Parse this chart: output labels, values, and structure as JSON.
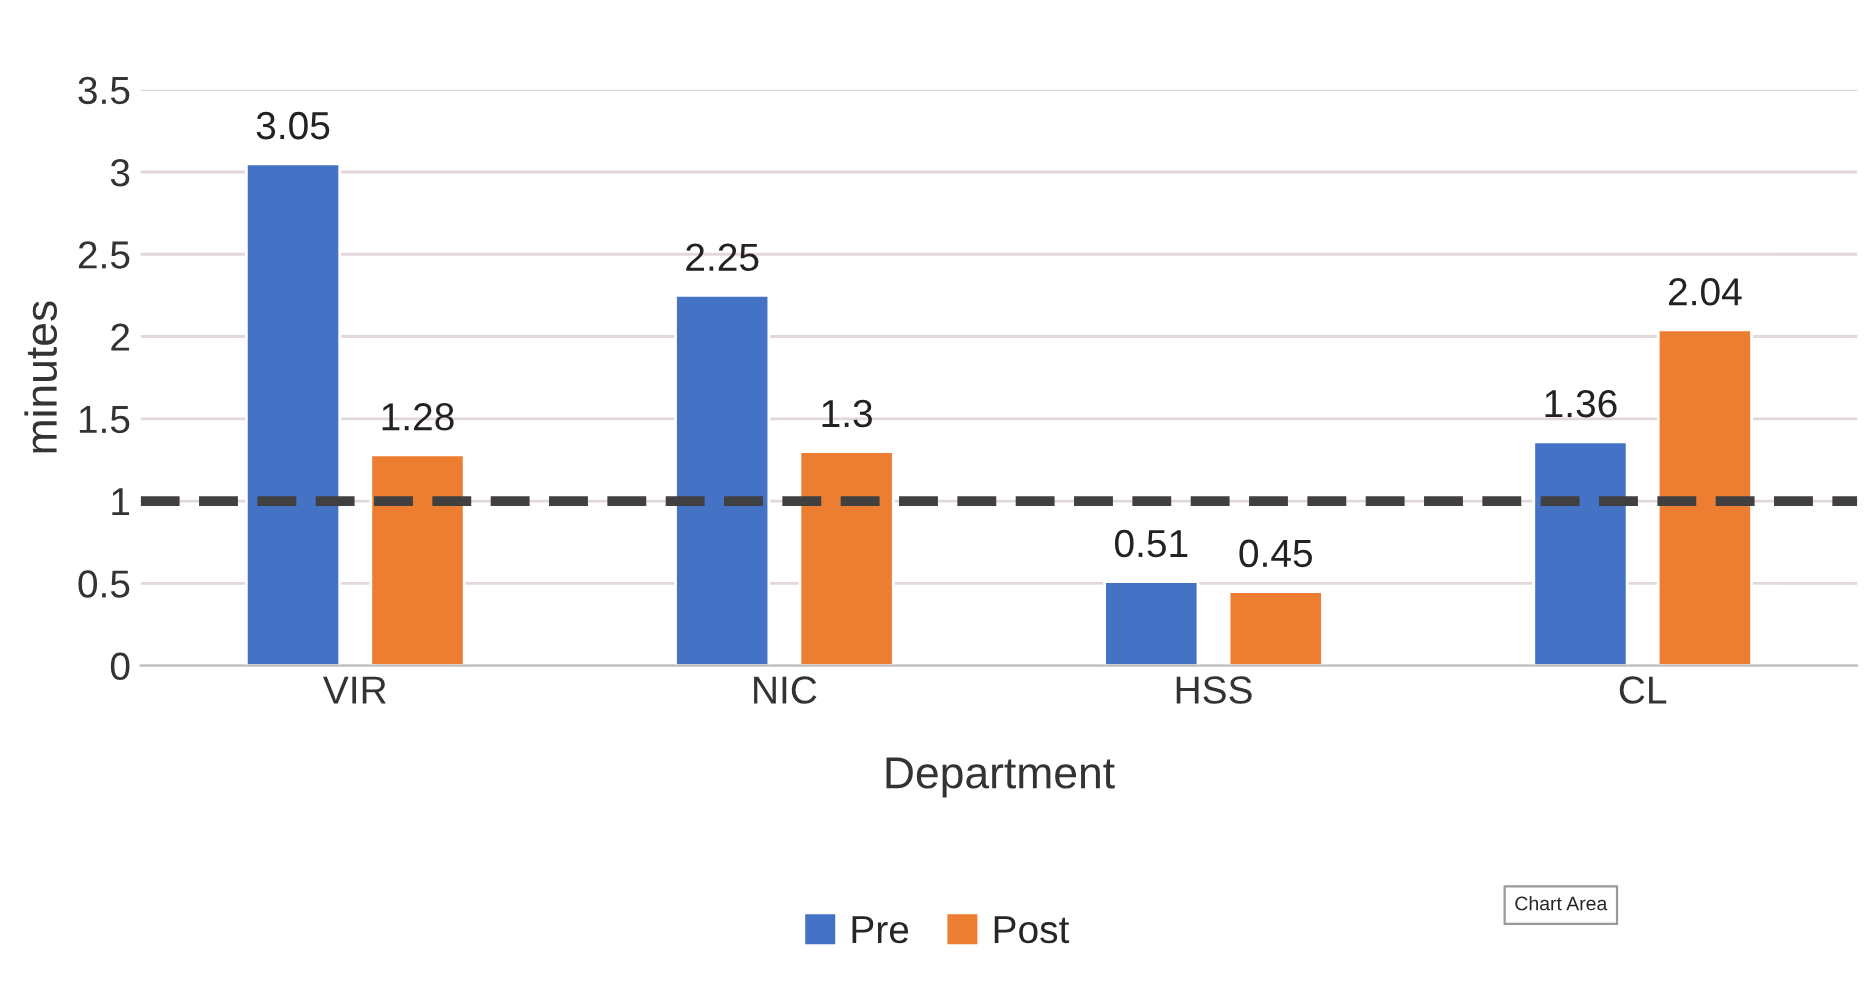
{
  "chart_data": {
    "type": "bar",
    "xlabel": "Department",
    "ylabel": "minutes",
    "categories": [
      "VIR",
      "NIC",
      "HSS",
      "CL"
    ],
    "series": [
      {
        "name": "Pre",
        "color": "#4472c4",
        "values": [
          3.05,
          2.25,
          0.51,
          1.36
        ]
      },
      {
        "name": "Post",
        "color": "#ed7d31",
        "values": [
          1.28,
          1.3,
          0.45,
          2.04
        ]
      }
    ],
    "ylim": [
      0,
      3.5
    ],
    "yticks": [
      0,
      0.5,
      1,
      1.5,
      2,
      2.5,
      3,
      3.5
    ],
    "grid": "y",
    "data_labels": true,
    "legend": "bottom",
    "ref_lines": [
      {
        "axis": "y",
        "value": 1,
        "color": "#404040",
        "line_style": "dashed"
      }
    ],
    "annotations": [
      "Chart Area"
    ]
  }
}
